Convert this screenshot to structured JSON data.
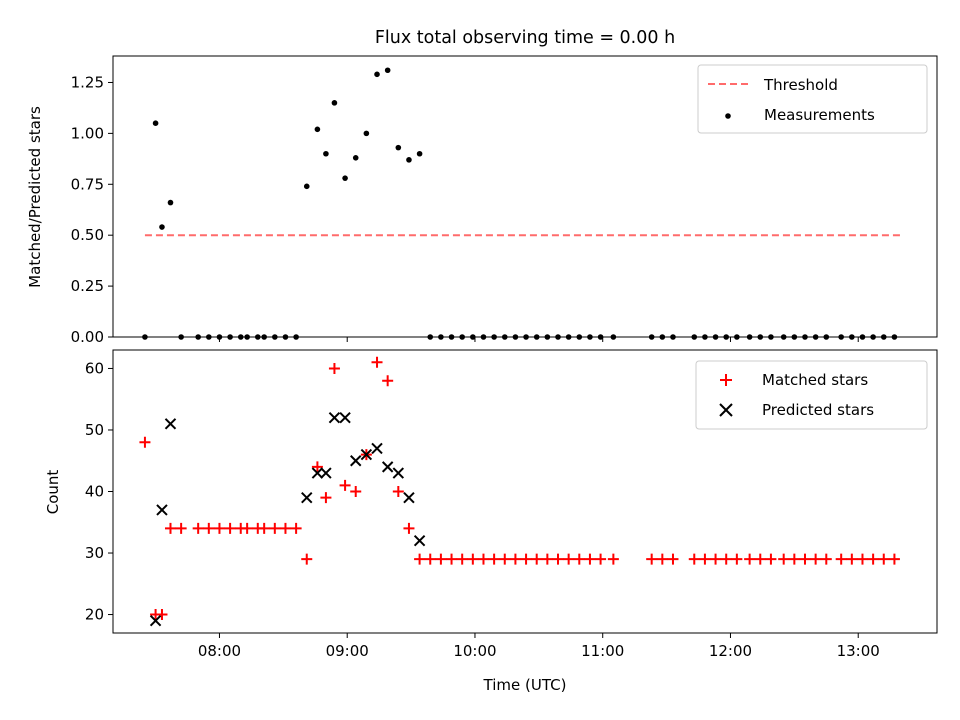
{
  "chart_data": [
    {
      "type": "scatter",
      "title": "Flux total observing time = 0.00 h",
      "xlabel": "",
      "ylabel": "Matched/Predicted stars",
      "xlim": [
        "07:10",
        "13:37"
      ],
      "ylim": [
        0,
        1.38
      ],
      "yticks": [
        "0.00",
        "0.25",
        "0.50",
        "0.75",
        "1.00",
        "1.25"
      ],
      "xticks": [
        "08:00",
        "09:00",
        "10:00",
        "11:00",
        "12:00",
        "13:00"
      ],
      "legend": {
        "position": "top-right",
        "entries": [
          "Threshold",
          "Measurements"
        ]
      },
      "threshold": {
        "name": "Threshold",
        "value": 0.5,
        "x_start": "07:25",
        "x_end": "13:20",
        "color": "#ff6b6b",
        "style": "dashed"
      },
      "series": [
        {
          "name": "Measurements",
          "color": "#000000",
          "marker": "dot",
          "x": [
            "07:25",
            "07:30",
            "07:33",
            "07:37",
            "07:42",
            "07:50",
            "07:55",
            "08:00",
            "08:05",
            "08:10",
            "08:13",
            "08:18",
            "08:21",
            "08:26",
            "08:31",
            "08:36",
            "08:41",
            "08:46",
            "08:50",
            "08:54",
            "08:59",
            "09:04",
            "09:09",
            "09:14",
            "09:19",
            "09:24",
            "09:29",
            "09:34",
            "09:39",
            "09:44",
            "09:49",
            "09:54",
            "09:59",
            "10:04",
            "10:09",
            "10:14",
            "10:19",
            "10:24",
            "10:29",
            "10:34",
            "10:39",
            "10:44",
            "10:49",
            "10:54",
            "10:59",
            "11:05",
            "11:23",
            "11:28",
            "11:33",
            "11:43",
            "11:48",
            "11:53",
            "11:58",
            "12:03",
            "12:09",
            "12:14",
            "12:19",
            "12:25",
            "12:30",
            "12:35",
            "12:40",
            "12:45",
            "12:52",
            "12:57",
            "13:02",
            "13:07",
            "13:12",
            "13:17"
          ],
          "y": [
            0.0,
            1.05,
            0.54,
            0.66,
            0.0,
            0.0,
            0.0,
            0.0,
            0.0,
            0.0,
            0.0,
            0.0,
            0.0,
            0.0,
            0.0,
            0.0,
            0.74,
            1.02,
            0.9,
            1.15,
            0.78,
            0.88,
            1.0,
            1.29,
            1.31,
            0.93,
            0.87,
            0.9,
            0.0,
            0.0,
            0.0,
            0.0,
            0.0,
            0.0,
            0.0,
            0.0,
            0.0,
            0.0,
            0.0,
            0.0,
            0.0,
            0.0,
            0.0,
            0.0,
            0.0,
            0.0,
            0.0,
            0.0,
            0.0,
            0.0,
            0.0,
            0.0,
            0.0,
            0.0,
            0.0,
            0.0,
            0.0,
            0.0,
            0.0,
            0.0,
            0.0,
            0.0,
            0.0,
            0.0,
            0.0,
            0.0,
            0.0,
            0.0
          ]
        }
      ]
    },
    {
      "type": "scatter",
      "title": "",
      "xlabel": "Time (UTC)",
      "ylabel": "Count",
      "xlim": [
        "07:10",
        "13:37"
      ],
      "ylim": [
        17,
        63
      ],
      "yticks": [
        "20",
        "30",
        "40",
        "50",
        "60"
      ],
      "xticks": [
        "08:00",
        "09:00",
        "10:00",
        "11:00",
        "12:00",
        "13:00"
      ],
      "legend": {
        "position": "top-right",
        "entries": [
          "Matched stars",
          "Predicted stars"
        ]
      },
      "series": [
        {
          "name": "Matched stars",
          "color": "#ff0000",
          "marker": "plus",
          "x": [
            "07:25",
            "07:30",
            "07:33",
            "07:37",
            "07:42",
            "07:50",
            "07:55",
            "08:00",
            "08:05",
            "08:10",
            "08:13",
            "08:18",
            "08:21",
            "08:26",
            "08:31",
            "08:36",
            "08:41",
            "08:46",
            "08:50",
            "08:54",
            "08:59",
            "09:04",
            "09:09",
            "09:14",
            "09:19",
            "09:24",
            "09:29",
            "09:34",
            "09:39",
            "09:44",
            "09:49",
            "09:54",
            "09:59",
            "10:04",
            "10:09",
            "10:14",
            "10:19",
            "10:24",
            "10:29",
            "10:34",
            "10:39",
            "10:44",
            "10:49",
            "10:54",
            "10:59",
            "11:05",
            "11:23",
            "11:28",
            "11:33",
            "11:43",
            "11:48",
            "11:53",
            "11:58",
            "12:03",
            "12:09",
            "12:14",
            "12:19",
            "12:25",
            "12:30",
            "12:35",
            "12:40",
            "12:45",
            "12:52",
            "12:57",
            "13:02",
            "13:07",
            "13:12",
            "13:17"
          ],
          "y": [
            48,
            20,
            20,
            34,
            34,
            34,
            34,
            34,
            34,
            34,
            34,
            34,
            34,
            34,
            34,
            34,
            29,
            44,
            39,
            60,
            41,
            40,
            46,
            61,
            58,
            40,
            34,
            29,
            29,
            29,
            29,
            29,
            29,
            29,
            29,
            29,
            29,
            29,
            29,
            29,
            29,
            29,
            29,
            29,
            29,
            29,
            29,
            29,
            29,
            29,
            29,
            29,
            29,
            29,
            29,
            29,
            29,
            29,
            29,
            29,
            29,
            29,
            29,
            29,
            29,
            29,
            29,
            29
          ]
        },
        {
          "name": "Predicted stars",
          "color": "#000000",
          "marker": "x",
          "x": [
            "07:30",
            "07:33",
            "07:37",
            "08:41",
            "08:46",
            "08:50",
            "08:54",
            "08:59",
            "09:04",
            "09:09",
            "09:14",
            "09:19",
            "09:24",
            "09:29",
            "09:34"
          ],
          "y": [
            19,
            37,
            51,
            39,
            43,
            43,
            52,
            52,
            45,
            46,
            47,
            44,
            43,
            39,
            32
          ]
        }
      ]
    }
  ]
}
